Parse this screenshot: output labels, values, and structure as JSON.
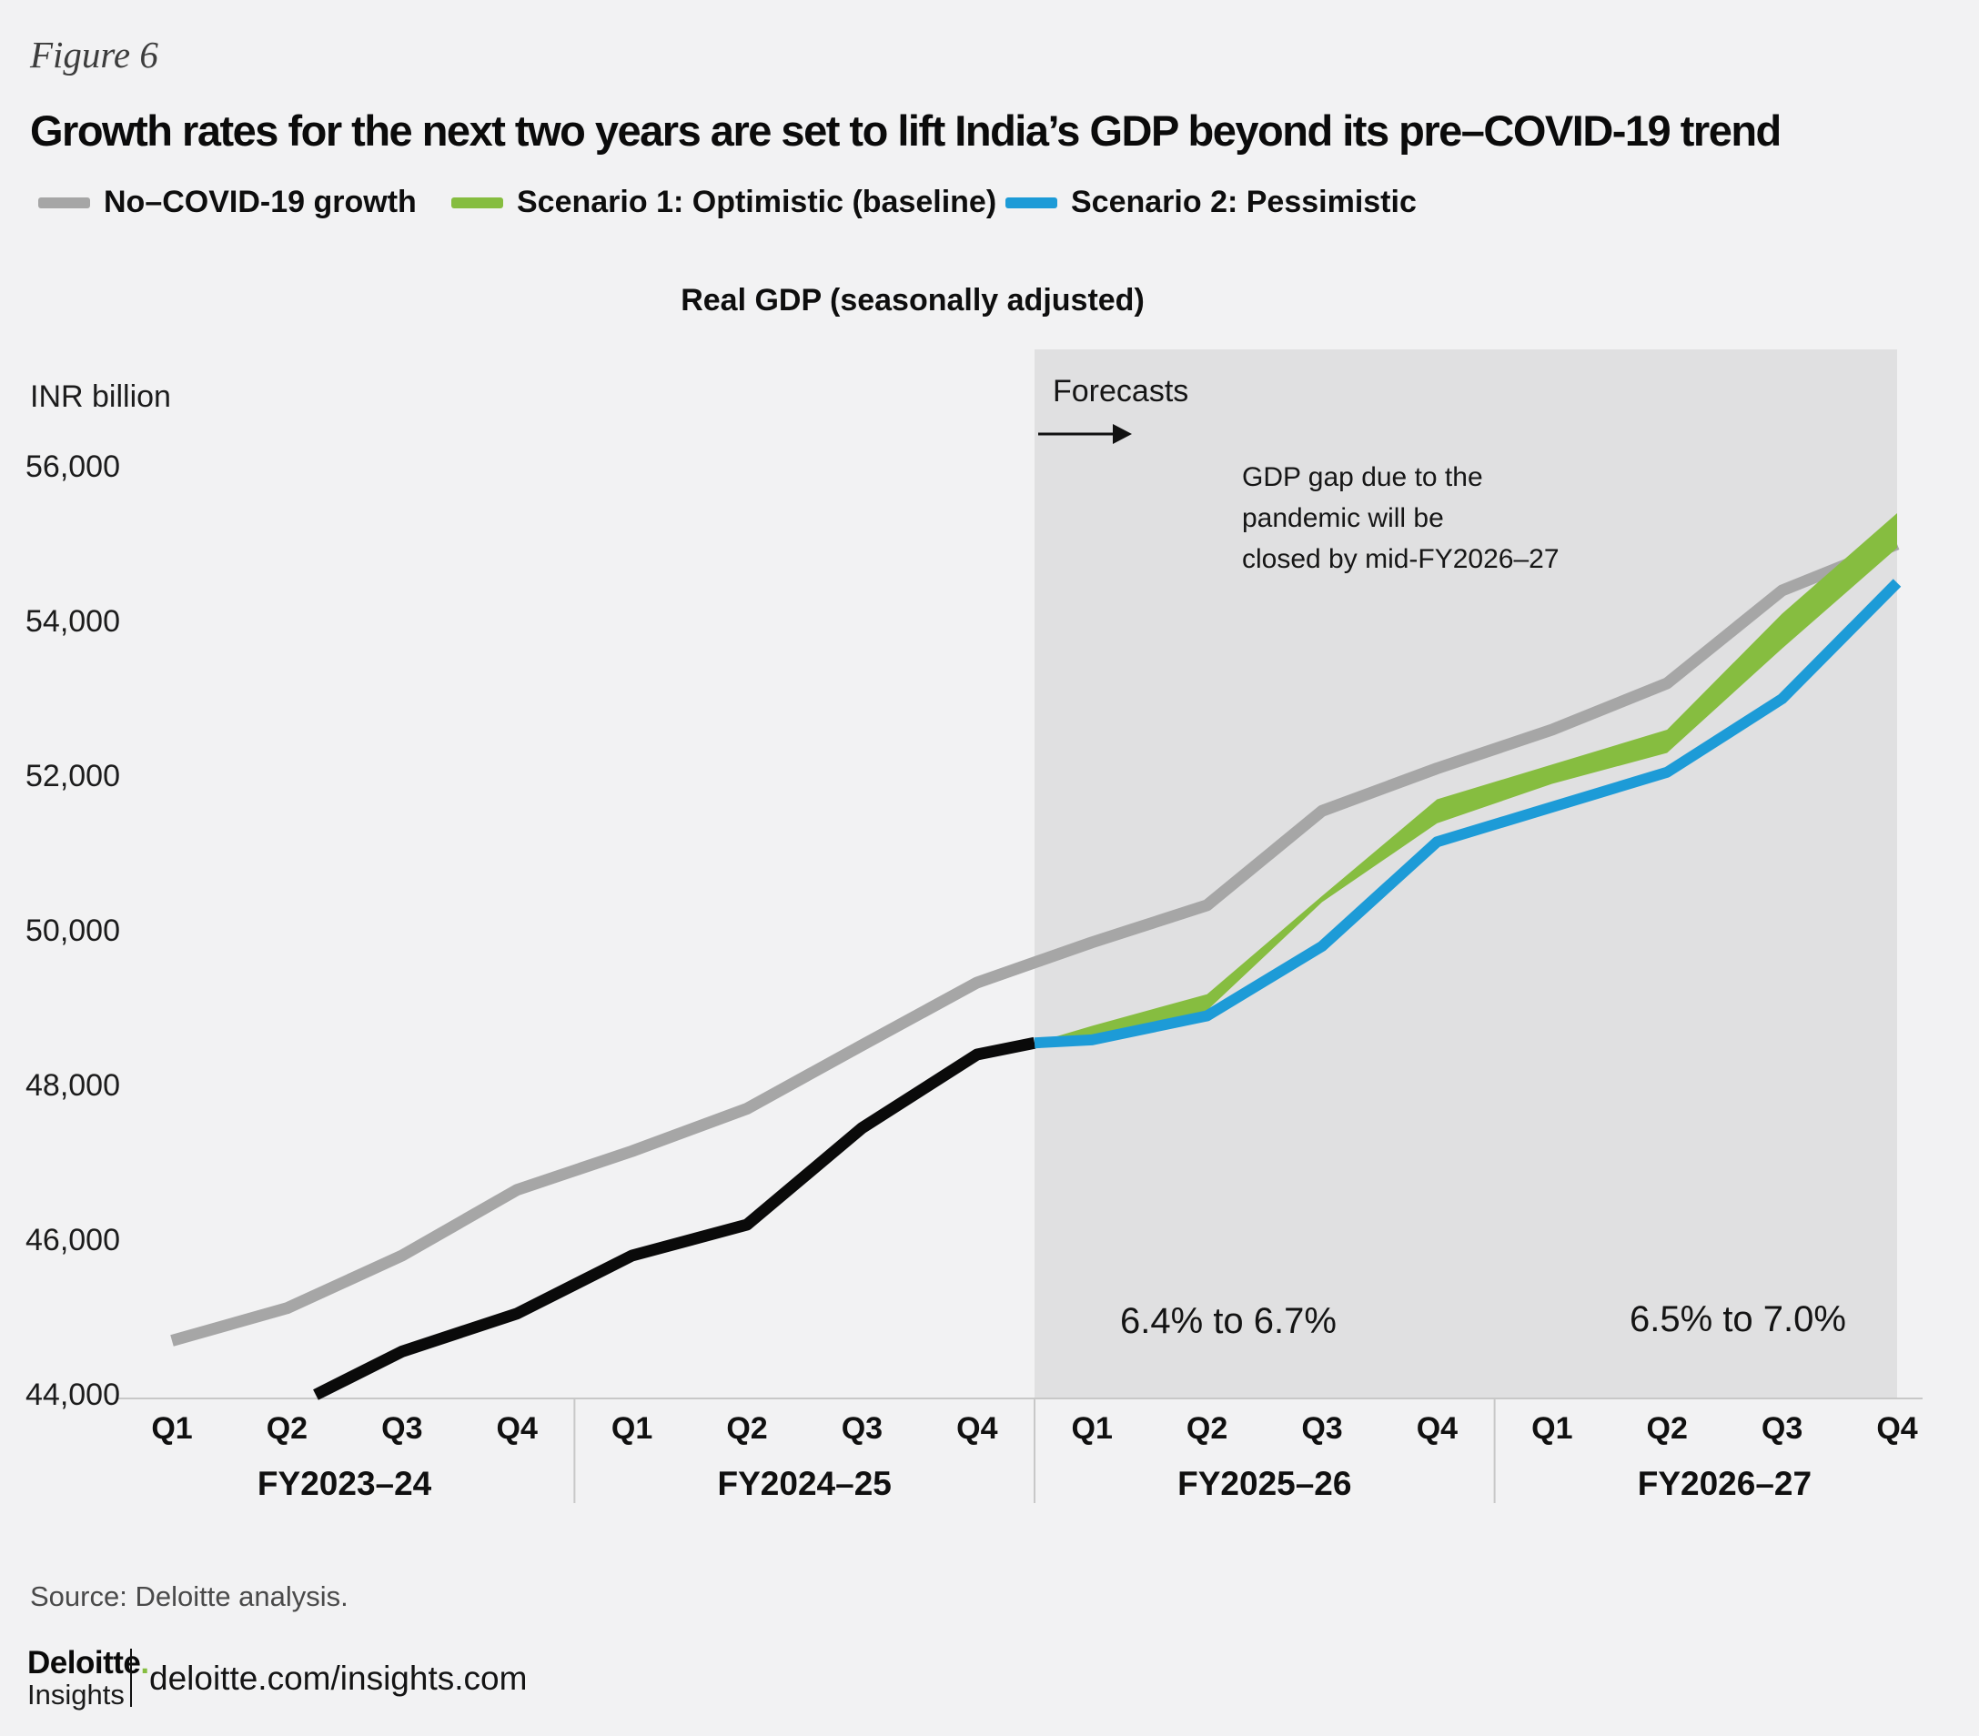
{
  "figure_label": "Figure 6",
  "title": "Growth rates for the next two years are set to lift India’s GDP beyond its pre–COVID-19 trend",
  "legend": [
    {
      "label": "No–COVID-19 growth",
      "color": "#a6a6a6"
    },
    {
      "label": "Scenario 1: Optimistic (baseline)",
      "color": "#86bd40"
    },
    {
      "label": "Scenario 2: Pessimistic",
      "color": "#1d9bd7"
    }
  ],
  "colors": {
    "background": "#f2f2f3",
    "forecast_shade": "#e0e0e1",
    "axis": "#c8c8c8",
    "no_covid": "#a6a6a6",
    "scenario1": "#86bd40",
    "scenario2": "#1d9bd7",
    "actual": "#0a0a0a"
  },
  "chart_data": {
    "type": "line",
    "title": "Real GDP (seasonally adjusted)",
    "unit_label": "INR billion",
    "ylim": [
      44000,
      56000
    ],
    "grid": false,
    "forecast_label": "Forecasts",
    "forecast_start_index": 7.5,
    "gap_note_lines": [
      "GDP gap due to the",
      "pandemic will be",
      "closed by mid-FY2026–27"
    ],
    "growth_ranges": [
      "6.4% to 6.7%",
      "6.5% to 7.0%"
    ],
    "y_ticks": [
      {
        "label": "56,000",
        "value": 56000
      },
      {
        "label": "54,000",
        "value": 54000
      },
      {
        "label": "52,000",
        "value": 52000
      },
      {
        "label": "50,000",
        "value": 50000
      },
      {
        "label": "48,000",
        "value": 48000
      },
      {
        "label": "46,000",
        "value": 46000
      },
      {
        "label": "44,000",
        "value": 44000
      }
    ],
    "x_groups": [
      {
        "fy": "FY2023–24",
        "quarters": [
          "Q1",
          "Q2",
          "Q3",
          "Q4"
        ]
      },
      {
        "fy": "FY2024–25",
        "quarters": [
          "Q1",
          "Q2",
          "Q3",
          "Q4"
        ]
      },
      {
        "fy": "FY2025–26",
        "quarters": [
          "Q1",
          "Q2",
          "Q3",
          "Q4"
        ]
      },
      {
        "fy": "FY2026–27",
        "quarters": [
          "Q1",
          "Q2",
          "Q3",
          "Q4"
        ]
      }
    ],
    "series": [
      {
        "id": "no_covid",
        "name": "No–COVID-19 growth",
        "color": "#a6a6a6",
        "style": "line",
        "x": [
          0,
          1,
          2,
          3,
          4,
          5,
          6,
          7,
          8,
          9,
          10,
          11,
          12,
          13,
          14,
          15
        ],
        "v": [
          44700,
          45120,
          45800,
          46650,
          47150,
          47700,
          48520,
          49330,
          49850,
          50330,
          51550,
          52100,
          52600,
          53200,
          54400,
          55000
        ]
      },
      {
        "id": "actual",
        "name": "Actual (historical)",
        "color": "#0a0a0a",
        "style": "line",
        "x": [
          1.25,
          2,
          3,
          4,
          5,
          6,
          7,
          7.5
        ],
        "v": [
          44000,
          44560,
          45050,
          45800,
          46200,
          47450,
          48400,
          48550
        ]
      },
      {
        "id": "scenario1_band_top",
        "name": "Scenario 1: Optimistic (baseline) — upper edge",
        "color": "#86bd40",
        "style": "band-top",
        "x": [
          7.5,
          8,
          9,
          10,
          11,
          12,
          13,
          14,
          15
        ],
        "v": [
          48550,
          48770,
          49180,
          50450,
          51700,
          52150,
          52600,
          54100,
          55400
        ]
      },
      {
        "id": "scenario1_band_bottom",
        "name": "Scenario 1: Optimistic (baseline) — lower edge",
        "color": "#86bd40",
        "style": "band-bottom",
        "x": [
          7.5,
          8,
          9,
          10,
          11,
          12,
          13,
          14,
          15
        ],
        "v": [
          48550,
          48610,
          48970,
          50370,
          51390,
          51900,
          52300,
          53650,
          54950
        ]
      },
      {
        "id": "scenario2",
        "name": "Scenario 2: Pessimistic",
        "color": "#1d9bd7",
        "style": "line",
        "x": [
          7.5,
          8,
          9,
          10,
          11,
          12,
          13,
          14,
          15
        ],
        "v": [
          48550,
          48590,
          48900,
          49800,
          51150,
          51600,
          52050,
          53000,
          54500
        ]
      }
    ]
  },
  "source": "Source: Deloitte analysis.",
  "footer": {
    "brand": "Deloitte",
    "brand_dot": ".",
    "brand_sub": "Insights",
    "url": "deloitte.com/insights.com"
  }
}
